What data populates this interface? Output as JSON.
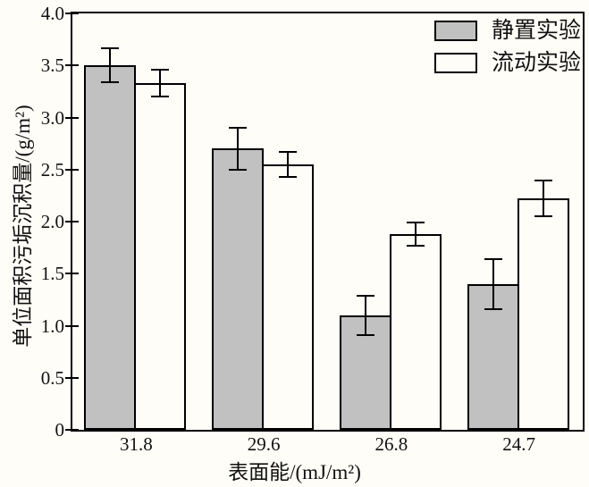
{
  "figure": {
    "background": "#fffdf7",
    "axis_color": "#000000"
  },
  "chart_data": {
    "type": "bar",
    "title": "",
    "categories": [
      "31.8",
      "29.6",
      "26.8",
      "24.7"
    ],
    "series": [
      {
        "name": "静置实验",
        "values": [
          3.5,
          2.7,
          1.1,
          1.4
        ],
        "errors": [
          0.17,
          0.21,
          0.2,
          0.25
        ],
        "fill": "#c1c1c1"
      },
      {
        "name": "流动实验",
        "values": [
          3.33,
          2.55,
          1.88,
          2.22
        ],
        "errors": [
          0.14,
          0.13,
          0.12,
          0.18
        ],
        "fill": "#fffdf7"
      }
    ],
    "xlabel": "表面能/(mJ/m²)",
    "ylabel": "单位面积污垢沉积量/(g/m²)",
    "ylim": [
      0,
      4.0
    ],
    "yticks": [
      {
        "v": 0,
        "label": "0"
      },
      {
        "v": 0.5,
        "label": "0.5"
      },
      {
        "v": 1.0,
        "label": "1.0"
      },
      {
        "v": 1.5,
        "label": "1.5"
      },
      {
        "v": 2.0,
        "label": "2.0"
      },
      {
        "v": 2.5,
        "label": "2.5"
      },
      {
        "v": 3.0,
        "label": "3.0"
      },
      {
        "v": 3.5,
        "label": "3.5"
      },
      {
        "v": 4.0,
        "label": "4.0"
      }
    ],
    "grid": false,
    "legend_position": "top-right",
    "bar_edge_color": "#000000"
  }
}
